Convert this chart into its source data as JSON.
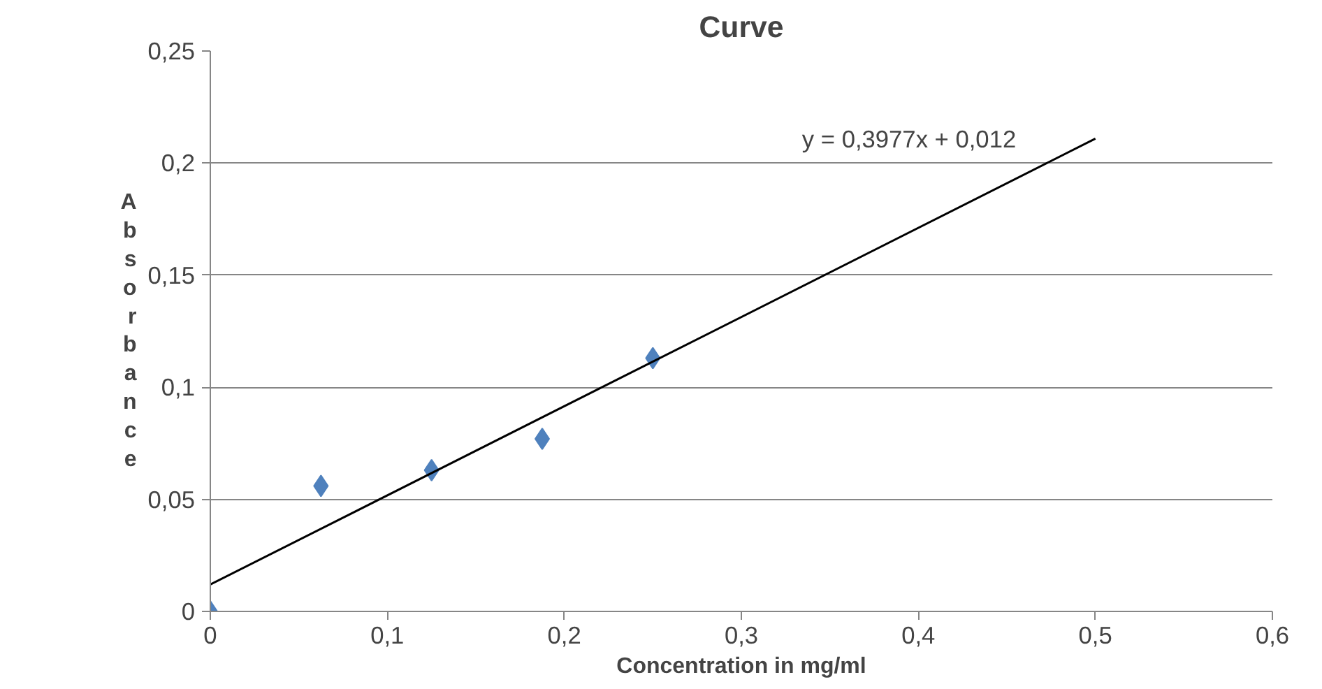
{
  "chart_data": {
    "type": "scatter",
    "title": "Curve",
    "xlabel": "Concentration in mg/ml",
    "ylabel": "Absorbance",
    "series": [
      {
        "color": "#4f81bd",
        "marker": "diamond",
        "x": [
          0,
          0.0625,
          0.125,
          0.1875,
          0.25
        ],
        "values": [
          0,
          0.056,
          0.063,
          0.077,
          0.113
        ]
      },
      {
        "type": "line",
        "color": "#000000",
        "marker": "none",
        "x": [
          0,
          0.5
        ],
        "values": [
          0.012,
          0.2109
        ]
      }
    ],
    "xlim": [
      0,
      0.6
    ],
    "ylim": [
      0,
      0.25
    ],
    "xticks": [
      0,
      {
        "value": 0.1,
        "label": "0,1"
      },
      {
        "value": 0.2,
        "label": "0,2"
      },
      {
        "value": 0.3,
        "label": "0,3"
      },
      {
        "value": 0.4,
        "label": "0,4"
      },
      {
        "value": 0.5,
        "label": "0,5"
      },
      {
        "value": 0.6,
        "label": "0,6"
      }
    ],
    "yticks": [
      0,
      {
        "value": 0.05,
        "label": "0,05"
      },
      {
        "value": 0.1,
        "label": "0,1"
      },
      {
        "value": 0.15,
        "label": "0,15"
      },
      {
        "value": 0.2,
        "label": "0,2"
      },
      {
        "value": 0.25,
        "label": "0,25"
      }
    ],
    "grid": "y",
    "annotations": [
      "y = 0,3977x + 0,012"
    ]
  }
}
